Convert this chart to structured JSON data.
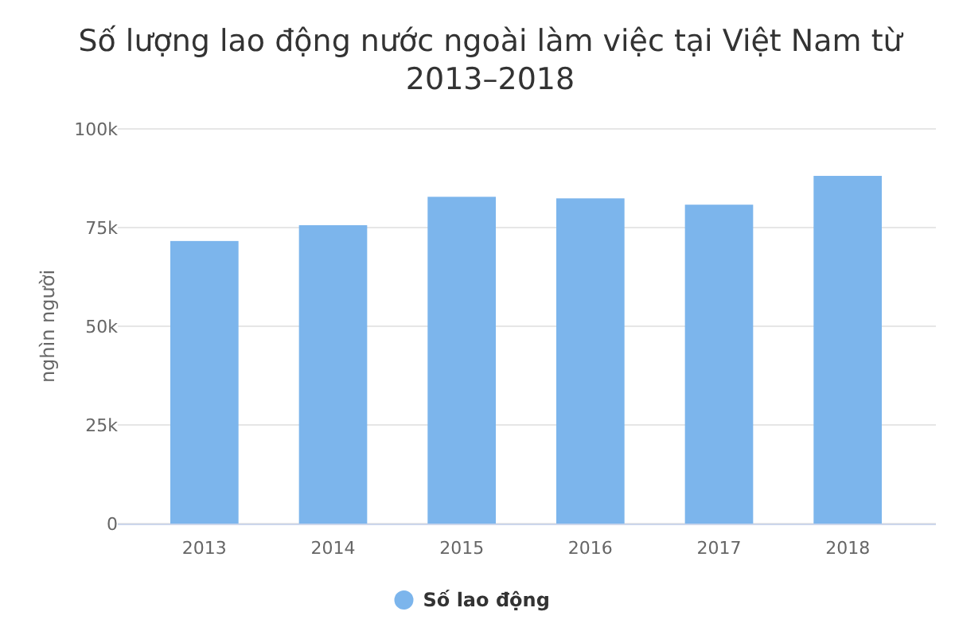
{
  "chart_data": {
    "type": "bar",
    "title": "Số lượng lao động nước ngoài làm việc tại Việt Nam từ 2013–2018",
    "ylabel": "nghìn người",
    "categories": [
      "2013",
      "2014",
      "2015",
      "2016",
      "2017",
      "2018"
    ],
    "series": [
      {
        "name": "Số lao động",
        "color": "#7cb5ec",
        "values": [
          71600,
          75600,
          82800,
          82400,
          80800,
          88100
        ]
      }
    ],
    "ylim": [
      0,
      100000
    ],
    "yticks": [
      {
        "value": 0,
        "label": "0"
      },
      {
        "value": 25000,
        "label": "25k"
      },
      {
        "value": 50000,
        "label": "50k"
      },
      {
        "value": 75000,
        "label": "75k"
      },
      {
        "value": 100000,
        "label": "100k"
      }
    ],
    "grid": "y",
    "legend": "bottom",
    "marker": "circle"
  }
}
